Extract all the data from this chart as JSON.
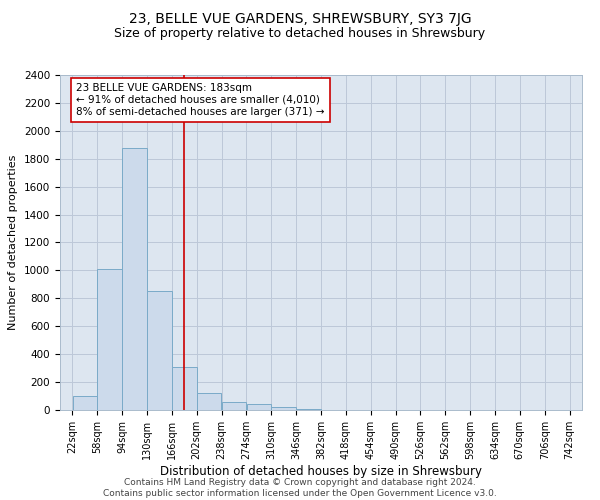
{
  "title": "23, BELLE VUE GARDENS, SHREWSBURY, SY3 7JG",
  "subtitle": "Size of property relative to detached houses in Shrewsbury",
  "xlabel": "Distribution of detached houses by size in Shrewsbury",
  "ylabel": "Number of detached properties",
  "bar_color": "#ccdaeb",
  "bar_edge_color": "#7aaac8",
  "grid_color": "#bcc8d8",
  "background_color": "#dde6f0",
  "vline_color": "#cc0000",
  "vline_value": 183,
  "annotation_text": "23 BELLE VUE GARDENS: 183sqm\n← 91% of detached houses are smaller (4,010)\n8% of semi-detached houses are larger (371) →",
  "bin_edges": [
    22,
    58,
    94,
    130,
    166,
    202,
    238,
    274,
    310,
    346,
    382,
    418,
    454,
    490,
    526,
    562,
    598,
    634,
    670,
    706,
    742
  ],
  "bin_heights": [
    100,
    1010,
    1880,
    850,
    310,
    120,
    55,
    40,
    25,
    5,
    3,
    2,
    1,
    1,
    0,
    0,
    0,
    0,
    0,
    0
  ],
  "ylim": [
    0,
    2400
  ],
  "yticks": [
    0,
    200,
    400,
    600,
    800,
    1000,
    1200,
    1400,
    1600,
    1800,
    2000,
    2200,
    2400
  ],
  "footer_text": "Contains HM Land Registry data © Crown copyright and database right 2024.\nContains public sector information licensed under the Open Government Licence v3.0.",
  "title_fontsize": 10,
  "subtitle_fontsize": 9,
  "xlabel_fontsize": 8.5,
  "ylabel_fontsize": 8,
  "tick_fontsize": 7.5,
  "annotation_fontsize": 7.5,
  "footer_fontsize": 6.5
}
